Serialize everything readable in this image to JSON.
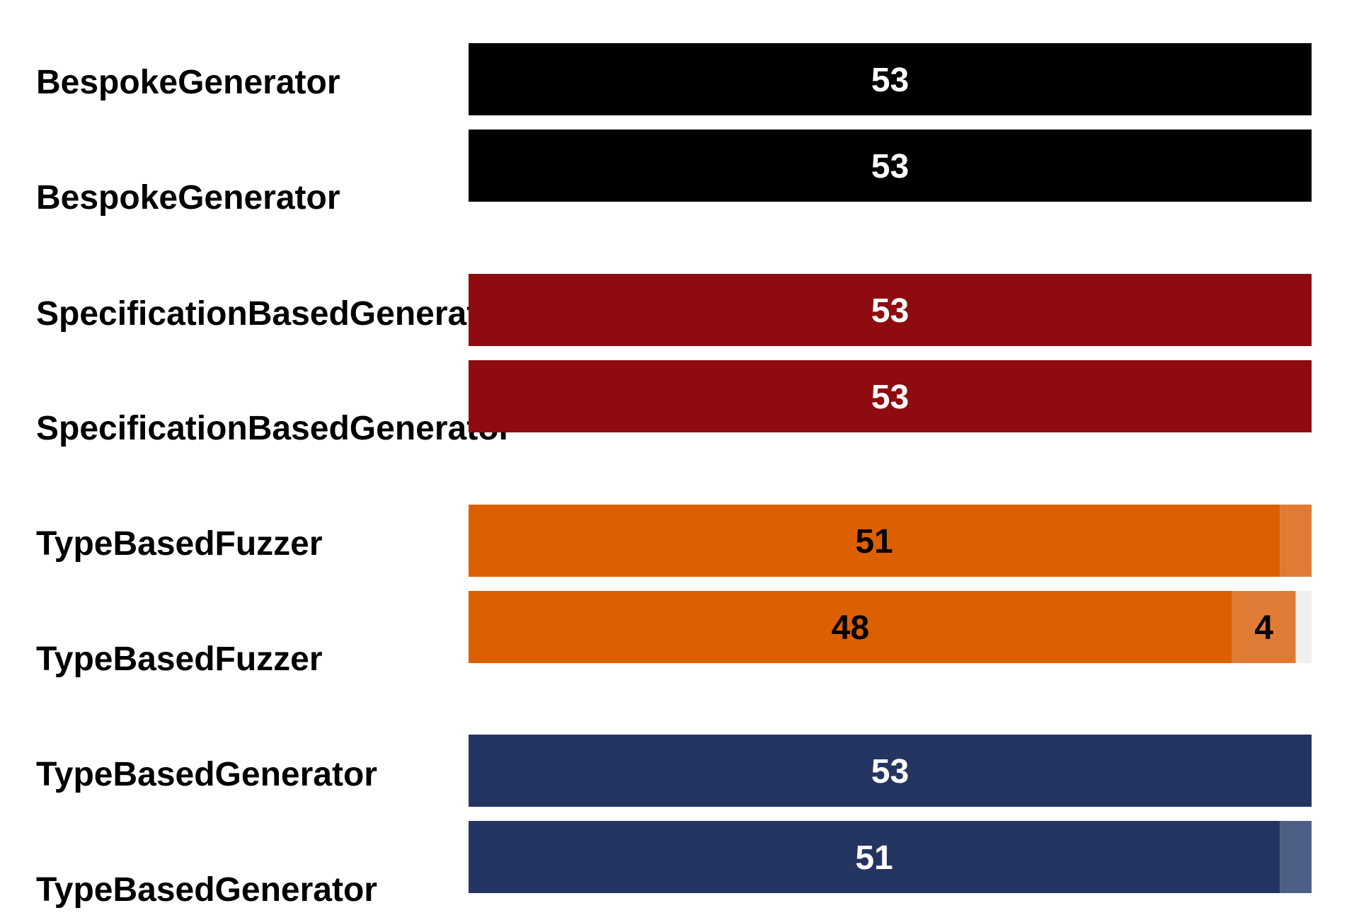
{
  "chart_data": {
    "type": "bar",
    "orientation": "horizontal",
    "stacked": true,
    "xlim": [
      0,
      53
    ],
    "grid": false,
    "legend": "none",
    "rows": [
      {
        "label": "BespokeGenerator",
        "color": "#000000",
        "lightColor": "#000000",
        "segments": [
          53,
          0,
          0
        ],
        "label_color": "#ffffff"
      },
      {
        "label": "BespokeGenerator",
        "color": "#000000",
        "lightColor": "#000000",
        "segments": [
          53,
          0,
          0
        ],
        "label_color": "#ffffff"
      },
      {
        "label": "SpecificationBasedGenerator",
        "color": "#8e0c0f",
        "lightColor": "#a8393b",
        "segments": [
          53,
          0,
          0
        ],
        "label_color": "#ffffff"
      },
      {
        "label": "SpecificationBasedGenerator",
        "color": "#8e0c0f",
        "lightColor": "#a8393b",
        "segments": [
          53,
          0,
          0
        ],
        "label_color": "#ffffff"
      },
      {
        "label": "TypeBasedFuzzer",
        "color": "#dc6000",
        "lightColor": "#e07b35",
        "segments": [
          51,
          2,
          0
        ],
        "label_color": "#000000"
      },
      {
        "label": "TypeBasedFuzzer",
        "color": "#dc6000",
        "lightColor": "#e07b35",
        "segments": [
          48,
          4,
          1
        ],
        "label_color": "#000000"
      },
      {
        "label": "TypeBasedGenerator",
        "color": "#253561",
        "lightColor": "#4e5f86",
        "segments": [
          53,
          0,
          0
        ],
        "label_color": "#ffffff"
      },
      {
        "label": "TypeBasedGenerator",
        "color": "#253561",
        "lightColor": "#4e5f86",
        "segments": [
          51,
          2,
          0
        ],
        "label_color": "#ffffff"
      }
    ],
    "remainder_color": "#f0f0f0"
  }
}
